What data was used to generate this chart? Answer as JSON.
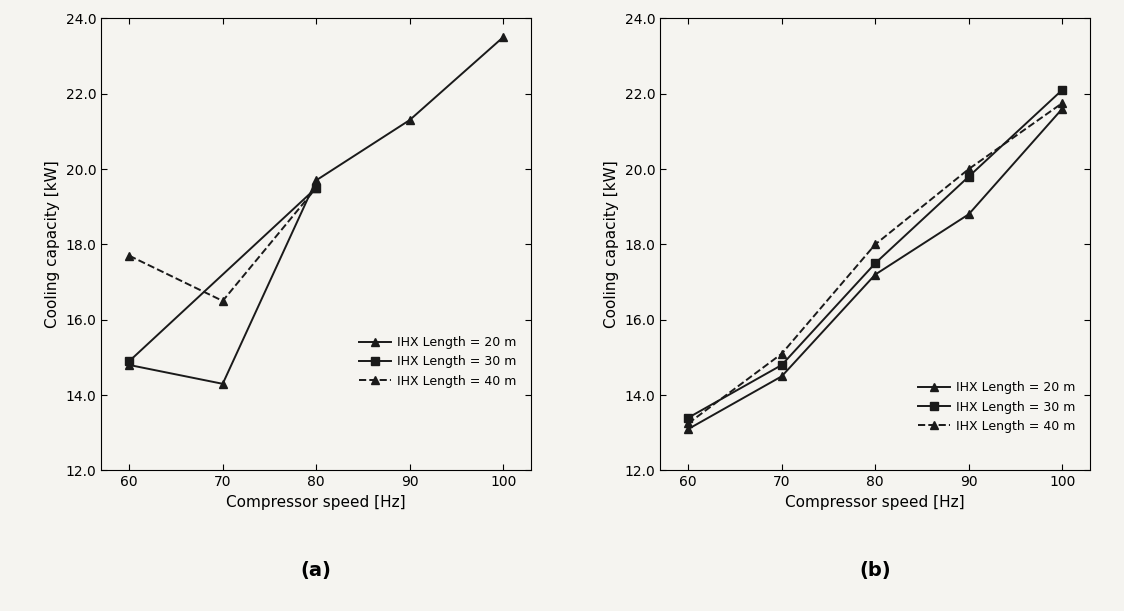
{
  "x": [
    60,
    70,
    80,
    90,
    100
  ],
  "panel_a": {
    "line1": {
      "y": [
        14.8,
        14.3,
        19.7,
        21.3,
        23.5
      ],
      "label": "IHX Length = 20 m",
      "style": "solid",
      "marker": "^"
    },
    "line2": {
      "y": [
        14.9,
        null,
        19.5,
        null,
        null
      ],
      "label": "IHX Length = 30 m",
      "style": "solid",
      "marker": "s"
    },
    "line3": {
      "y": [
        17.7,
        16.5,
        19.5,
        null,
        null
      ],
      "label": "IHX Length = 40 m",
      "style": "dashed",
      "marker": "^"
    }
  },
  "panel_b": {
    "line1": {
      "y": [
        13.1,
        14.5,
        17.2,
        18.8,
        21.6
      ],
      "label": "IHX Length = 20 m",
      "style": "solid",
      "marker": "^"
    },
    "line2": {
      "y": [
        13.4,
        14.8,
        17.5,
        19.8,
        22.1
      ],
      "label": "IHX Length = 30 m",
      "style": "solid",
      "marker": "s"
    },
    "line3": {
      "y": [
        13.25,
        15.1,
        18.0,
        20.0,
        21.75
      ],
      "label": "IHX Length = 40 m",
      "style": "dashed",
      "marker": "^"
    }
  },
  "xlabel": "Compressor speed [Hz]",
  "ylabel": "Cooling capacity [kW]",
  "xlim": [
    57,
    103
  ],
  "ylim": [
    12.0,
    24.0
  ],
  "xticks": [
    60,
    70,
    80,
    90,
    100
  ],
  "yticks": [
    12.0,
    14.0,
    16.0,
    18.0,
    20.0,
    22.0,
    24.0
  ],
  "label_a": "(a)",
  "label_b": "(b)",
  "color": "#1a1a1a",
  "linewidth": 1.4,
  "markersize": 6,
  "fontsize_tick": 10,
  "fontsize_label": 11,
  "fontsize_caption": 14,
  "bg_color": "#f5f4f0"
}
